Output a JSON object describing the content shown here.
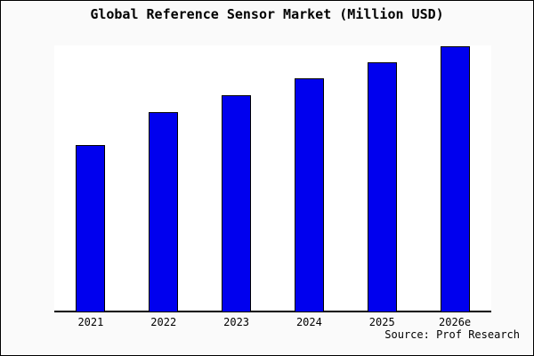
{
  "window": {
    "title": "Global Reference Sensor Market (Million USD)",
    "source_note": "Source: Prof Research"
  },
  "colors": {
    "page_background": "#fafafa",
    "plot_background": "#ffffff",
    "bar_fill": "#0000ee",
    "bar_border": "#000000",
    "axis_line": "#000000",
    "text": "#000000",
    "outer_border": "#000000"
  },
  "chart_data": {
    "type": "bar",
    "title": "Global Reference Sensor Market (Million USD)",
    "categories": [
      "2021",
      "2022",
      "2023",
      "2024",
      "2025",
      "2026e"
    ],
    "values": [
      188,
      225,
      244,
      263,
      281,
      299
    ],
    "value_note": "No y-axis ticks or data labels are shown in the image; values are relative units estimated from bar pixel heights (baseline 0, tallest bar ~299).",
    "xlabel": "",
    "ylabel": "",
    "ylim": [
      0,
      300
    ],
    "grid": false,
    "legend_position": "none",
    "axes_shown": [
      "bottom"
    ],
    "source": "Source: Prof Research"
  }
}
